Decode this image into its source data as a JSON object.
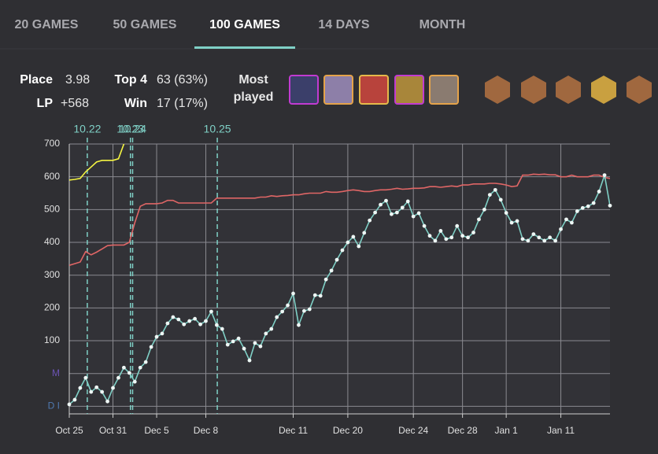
{
  "tabs": [
    "20 GAMES",
    "50 GAMES",
    "100 GAMES",
    "14 DAYS",
    "MONTH"
  ],
  "active_tab": 2,
  "stats": [
    {
      "label": "Place",
      "value": "3.98"
    },
    {
      "label": "Top 4",
      "value": "63 (63%)"
    },
    {
      "label": "LP",
      "value": "+568"
    },
    {
      "label": "Win",
      "value": "17 (17%)"
    }
  ],
  "most_played": [
    "Most",
    "played"
  ],
  "chart_data": {
    "type": "line",
    "categories": [
      "Oct 25",
      null,
      null,
      null,
      null,
      null,
      null,
      null,
      "Oct 31",
      null,
      null,
      null,
      null,
      null,
      null,
      null,
      "Dec 5",
      null,
      null,
      null,
      null,
      null,
      null,
      null,
      null,
      "Dec 8",
      null,
      null,
      null,
      null,
      null,
      null,
      null,
      null,
      null,
      null,
      null,
      null,
      null,
      null,
      null,
      "Dec 11",
      null,
      null,
      null,
      null,
      null,
      null,
      null,
      null,
      null,
      "Dec 20",
      null,
      null,
      null,
      null,
      null,
      null,
      null,
      null,
      null,
      null,
      null,
      "Dec 24",
      null,
      null,
      null,
      null,
      null,
      null,
      null,
      null,
      "Dec 28",
      null,
      null,
      null,
      null,
      null,
      null,
      null,
      "Jan 1",
      null,
      null,
      null,
      null,
      null,
      null,
      null,
      null,
      null,
      "Jan 11",
      null,
      null,
      null,
      null,
      null,
      null,
      null,
      null,
      null
    ],
    "series": [
      {
        "color": "#f5f542",
        "values": [
          590,
          592,
          595,
          615,
          630,
          645,
          650,
          650,
          650,
          655,
          700,
          null,
          null,
          null,
          null,
          null,
          null,
          null,
          null,
          null,
          null,
          null,
          null,
          null,
          null,
          null,
          null,
          null,
          null,
          null,
          null,
          null,
          null,
          null,
          null,
          null,
          null,
          null,
          null,
          null,
          null,
          null,
          null,
          null,
          null,
          null,
          null,
          null,
          null,
          null,
          null,
          null,
          null,
          null,
          null,
          null,
          null,
          null,
          null,
          null,
          null,
          null,
          null,
          null,
          null,
          null,
          null,
          null,
          null,
          null,
          null,
          null,
          null,
          null,
          null,
          null,
          null,
          null,
          null,
          null,
          null,
          null,
          null,
          null,
          null,
          null,
          null,
          null,
          null,
          null,
          null,
          null,
          null,
          null,
          null,
          null,
          null,
          null,
          null,
          null
        ]
      },
      {
        "color": "#e06666",
        "values": [
          330,
          335,
          340,
          372,
          362,
          370,
          380,
          390,
          392,
          392,
          392,
          400,
          460,
          510,
          518,
          518,
          518,
          520,
          528,
          528,
          520,
          520,
          520,
          520,
          520,
          520,
          520,
          535,
          535,
          535,
          535,
          535,
          535,
          535,
          535,
          538,
          538,
          542,
          540,
          542,
          543,
          545,
          545,
          548,
          550,
          550,
          550,
          555,
          553,
          553,
          555,
          558,
          560,
          558,
          555,
          555,
          558,
          560,
          560,
          562,
          565,
          562,
          563,
          565,
          565,
          566,
          570,
          570,
          568,
          570,
          572,
          570,
          575,
          575,
          578,
          578,
          578,
          580,
          580,
          578,
          575,
          570,
          572,
          605,
          605,
          608,
          607,
          608,
          606,
          606,
          600,
          600,
          605,
          600,
          600,
          600,
          605,
          605,
          598,
          595
        ]
      },
      {
        "color": "#7fd0c6",
        "values": [
          -94,
          -80,
          -44,
          -13,
          -56,
          -42,
          -56,
          -85,
          -44,
          -13,
          18,
          2,
          -25,
          18,
          35,
          81,
          112,
          122,
          153,
          172,
          165,
          150,
          160,
          167,
          150,
          160,
          189,
          148,
          136,
          88,
          98,
          107,
          76,
          40,
          93,
          83,
          122,
          136,
          172,
          189,
          208,
          244,
          148,
          191,
          196,
          239,
          237,
          287,
          314,
          347,
          376,
          400,
          417,
          388,
          429,
          467,
          491,
          515,
          527,
          486,
          491,
          506,
          525,
          479,
          489,
          450,
          420,
          405,
          435,
          410,
          415,
          450,
          420,
          415,
          430,
          470,
          500,
          545,
          560,
          530,
          490,
          460,
          465,
          410,
          405,
          425,
          415,
          405,
          415,
          405,
          440,
          470,
          460,
          495,
          505,
          510,
          520,
          555,
          605,
          512
        ]
      }
    ],
    "ylim": [
      -123,
      700
    ],
    "yticks": [
      {
        "value": -100,
        "label": "D I"
      },
      {
        "value": 0,
        "label": "M"
      },
      100,
      200,
      300,
      400,
      500,
      600,
      700
    ],
    "patches": [
      {
        "label": "10.22",
        "x": 3.3
      },
      {
        "label": "10.23",
        "x": 11.2
      },
      {
        "label": "10.24",
        "x": 11.6
      },
      {
        "label": "10.25",
        "x": 27.1
      }
    ],
    "grid": true
  }
}
